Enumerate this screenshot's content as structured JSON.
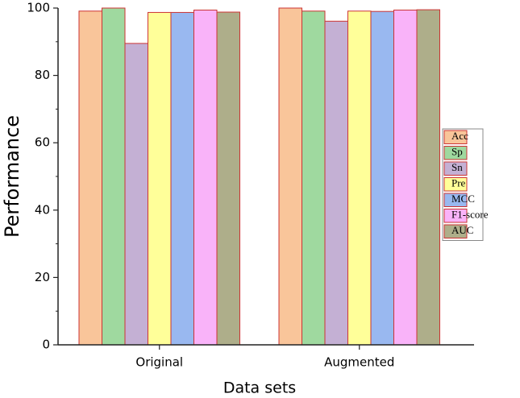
{
  "chart_data": {
    "type": "bar",
    "xlabel": "Data sets",
    "ylabel": "Performance",
    "categories": [
      "Original",
      "Augmented"
    ],
    "series": [
      {
        "name": "Acc",
        "color": "#f9c59a",
        "values": [
          99.1,
          100
        ]
      },
      {
        "name": "Sp",
        "color": "#9fd99f",
        "values": [
          100,
          99.1
        ]
      },
      {
        "name": "Sn",
        "color": "#c4b0d4",
        "values": [
          89.5,
          96.1
        ]
      },
      {
        "name": "Pre",
        "color": "#ffff99",
        "values": [
          98.7,
          99.1
        ]
      },
      {
        "name": "MCC",
        "color": "#99b8f0",
        "values": [
          98.7,
          99.0
        ]
      },
      {
        "name": "F1-score",
        "color": "#f9b3f9",
        "values": [
          99.4,
          99.4
        ]
      },
      {
        "name": "AUC",
        "color": "#aeae8a",
        "values": [
          98.8,
          99.5
        ]
      }
    ],
    "edge_color": "#cc3333",
    "ylim": [
      0,
      100
    ],
    "yticks": [
      0,
      20,
      40,
      60,
      80,
      100
    ],
    "legend": "right"
  }
}
